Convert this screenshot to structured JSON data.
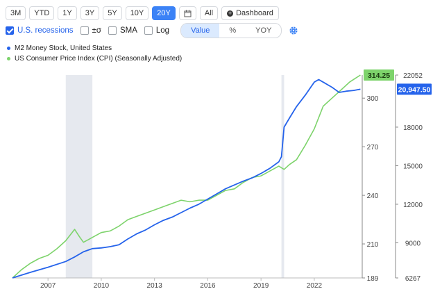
{
  "toolbar": {
    "ranges": [
      "3M",
      "YTD",
      "1Y",
      "3Y",
      "5Y",
      "10Y",
      "20Y"
    ],
    "active_range": "20Y",
    "all_label": "All",
    "dashboard_label": "Dashboard"
  },
  "options": {
    "recessions_label": "U.S. recessions",
    "sigma_label": "±σ",
    "sma_label": "SMA",
    "log_label": "Log",
    "modes": [
      "Value",
      "%",
      "YOY"
    ],
    "active_mode": "Value"
  },
  "colors": {
    "m2": "#2563eb",
    "cpi": "#7dd36b",
    "recession": "#e6e9ef",
    "active": "#3b82f6"
  },
  "chart_data": {
    "type": "line",
    "x_ticks": [
      "2007",
      "2010",
      "2013",
      "2016",
      "2019",
      "2022"
    ],
    "recessions": [
      [
        2008.0,
        2009.5
      ],
      [
        2020.15,
        2020.3
      ]
    ],
    "xlim": [
      2005.0,
      2024.7
    ],
    "series": [
      {
        "name": "M2 Money Stock, United States",
        "axis": "right",
        "ylim": [
          6267,
          22052
        ],
        "ticks": [
          "6267",
          "9000",
          "12000",
          "15000",
          "18000",
          "22052"
        ],
        "last_value_label": "20,947.50",
        "points": [
          [
            2005.0,
            6267
          ],
          [
            2006.0,
            6700
          ],
          [
            2007.0,
            7100
          ],
          [
            2008.0,
            7550
          ],
          [
            2008.5,
            7900
          ],
          [
            2009.0,
            8300
          ],
          [
            2009.5,
            8550
          ],
          [
            2010.0,
            8600
          ],
          [
            2010.5,
            8700
          ],
          [
            2011.0,
            8850
          ],
          [
            2011.5,
            9300
          ],
          [
            2012.0,
            9700
          ],
          [
            2012.5,
            10000
          ],
          [
            2013.0,
            10400
          ],
          [
            2013.5,
            10750
          ],
          [
            2014.0,
            11000
          ],
          [
            2014.5,
            11350
          ],
          [
            2015.0,
            11700
          ],
          [
            2015.5,
            12000
          ],
          [
            2016.0,
            12400
          ],
          [
            2016.5,
            12800
          ],
          [
            2017.0,
            13200
          ],
          [
            2017.5,
            13500
          ],
          [
            2018.0,
            13800
          ],
          [
            2018.5,
            14050
          ],
          [
            2019.0,
            14400
          ],
          [
            2019.5,
            14800
          ],
          [
            2020.0,
            15300
          ],
          [
            2020.15,
            15700
          ],
          [
            2020.3,
            18000
          ],
          [
            2020.6,
            18700
          ],
          [
            2021.0,
            19600
          ],
          [
            2021.5,
            20500
          ],
          [
            2022.0,
            21500
          ],
          [
            2022.25,
            21700
          ],
          [
            2022.5,
            21500
          ],
          [
            2023.0,
            21100
          ],
          [
            2023.4,
            20700
          ],
          [
            2023.8,
            20800
          ],
          [
            2024.2,
            20850
          ],
          [
            2024.6,
            20947.5
          ]
        ]
      },
      {
        "name": "US Consumer Price Index (CPI) (Seasonally Adjusted)",
        "axis": "middle",
        "ylim": [
          189,
          314.25
        ],
        "ticks": [
          "189",
          "210",
          "240",
          "270",
          "300",
          "314.25"
        ],
        "last_value_label": "314.25",
        "points": [
          [
            2005.0,
            189
          ],
          [
            2005.5,
            194
          ],
          [
            2006.0,
            198
          ],
          [
            2006.5,
            201
          ],
          [
            2007.0,
            203
          ],
          [
            2007.5,
            207
          ],
          [
            2008.0,
            212
          ],
          [
            2008.5,
            219
          ],
          [
            2008.8,
            214
          ],
          [
            2009.0,
            211
          ],
          [
            2009.5,
            214
          ],
          [
            2010.0,
            217
          ],
          [
            2010.5,
            218
          ],
          [
            2011.0,
            221
          ],
          [
            2011.5,
            225
          ],
          [
            2012.0,
            227
          ],
          [
            2012.5,
            229
          ],
          [
            2013.0,
            231
          ],
          [
            2013.5,
            233
          ],
          [
            2014.0,
            235
          ],
          [
            2014.5,
            237
          ],
          [
            2015.0,
            236
          ],
          [
            2015.5,
            237
          ],
          [
            2016.0,
            237
          ],
          [
            2016.5,
            240
          ],
          [
            2017.0,
            243
          ],
          [
            2017.5,
            244
          ],
          [
            2018.0,
            248
          ],
          [
            2018.5,
            251
          ],
          [
            2019.0,
            252
          ],
          [
            2019.5,
            255
          ],
          [
            2020.0,
            258
          ],
          [
            2020.3,
            256
          ],
          [
            2020.6,
            259
          ],
          [
            2021.0,
            262
          ],
          [
            2021.5,
            271
          ],
          [
            2022.0,
            281
          ],
          [
            2022.5,
            295
          ],
          [
            2023.0,
            300
          ],
          [
            2023.5,
            305
          ],
          [
            2024.0,
            310
          ],
          [
            2024.6,
            314.25
          ]
        ]
      }
    ]
  }
}
